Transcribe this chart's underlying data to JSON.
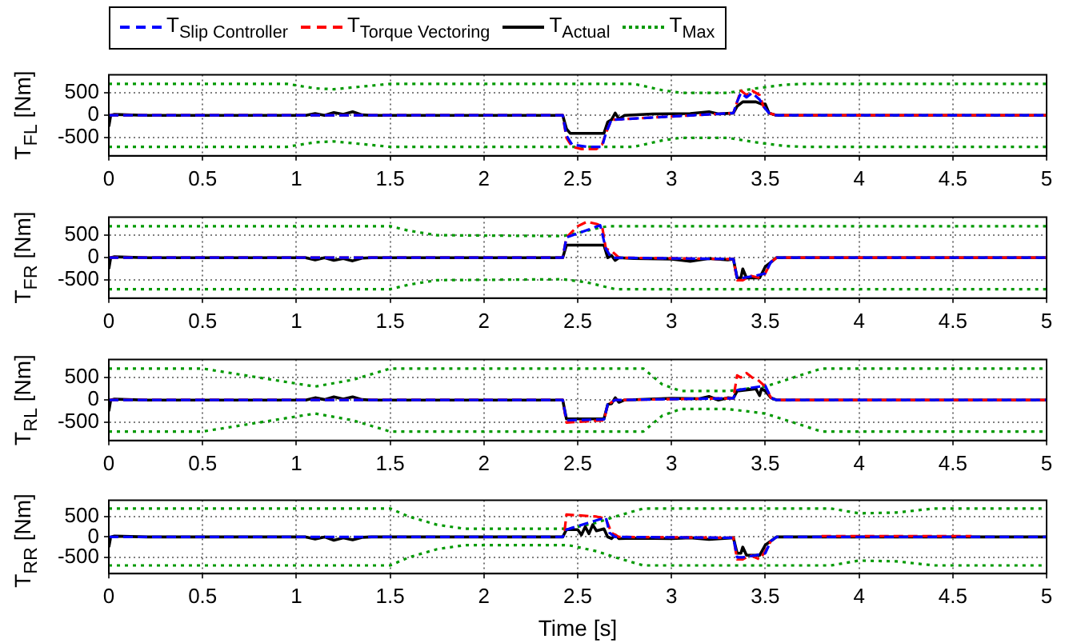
{
  "chart_data": [
    {
      "type": "line",
      "ylabel": "T$_{FL}$ [Nm]",
      "legend": "top left",
      "grid": true,
      "xlim": [
        0,
        5
      ],
      "xticks": [
        0,
        0.5,
        1,
        1.5,
        2,
        2.5,
        3,
        3.5,
        4,
        4.5,
        5
      ],
      "ylim": [
        -900,
        900
      ],
      "yticks": [
        -500,
        0,
        500
      ],
      "series": [
        {
          "name": "T$_{Slip Controller}$",
          "color": "#0000ff",
          "line_style": "dashed",
          "x": [
            0,
            2.42,
            2.44,
            2.47,
            2.55,
            2.63,
            2.65,
            2.68,
            3.33,
            3.35,
            3.37,
            3.4,
            3.43,
            3.47,
            3.49,
            3.52,
            3.56,
            5
          ],
          "values": [
            0,
            0,
            -450,
            -650,
            -700,
            -700,
            -400,
            -100,
            50,
            300,
            500,
            400,
            500,
            350,
            200,
            50,
            0,
            0
          ]
        },
        {
          "name": "T$_{Torque Vectoring}$",
          "color": "#ff0000",
          "line_style": "dashed",
          "x": [
            0,
            2.42,
            2.44,
            2.47,
            2.52,
            2.6,
            2.63,
            2.65,
            2.68,
            3.33,
            3.35,
            3.37,
            3.4,
            3.43,
            3.47,
            3.49,
            3.52,
            3.56,
            5
          ],
          "values": [
            0,
            0,
            -500,
            -700,
            -750,
            -750,
            -650,
            -400,
            -100,
            50,
            300,
            550,
            450,
            550,
            450,
            200,
            50,
            0,
            0
          ]
        },
        {
          "name": "T$_{Actual}$",
          "color": "#000000",
          "line_style": "solid",
          "x": [
            0,
            0.01,
            0.03,
            0.2,
            1.05,
            1.1,
            1.15,
            1.2,
            1.25,
            1.3,
            1.35,
            1.4,
            2.42,
            2.44,
            2.46,
            2.64,
            2.66,
            2.68,
            2.7,
            2.72,
            2.75,
            2.9,
            3.1,
            3.2,
            3.25,
            3.33,
            3.35,
            3.38,
            3.45,
            3.48,
            3.5,
            3.52,
            3.56,
            5
          ],
          "values": [
            -250,
            0,
            20,
            0,
            0,
            40,
            0,
            60,
            20,
            80,
            10,
            0,
            0,
            -300,
            -400,
            -400,
            -150,
            -100,
            50,
            -80,
            0,
            30,
            40,
            80,
            30,
            50,
            200,
            300,
            300,
            250,
            250,
            50,
            0,
            0
          ]
        },
        {
          "name": "T$_{Max}$",
          "color": "#009900",
          "line_style": "dotted",
          "x": [
            0,
            0.95,
            1.1,
            1.2,
            1.5,
            2.8,
            2.95,
            3.05,
            3.3,
            3.45,
            3.6,
            3.7,
            5
          ],
          "values": [
            700,
            700,
            600,
            580,
            700,
            700,
            560,
            500,
            500,
            600,
            680,
            700,
            700
          ]
        },
        {
          "color": "#009900",
          "line_style": "dotted",
          "x": [
            0,
            0.95,
            1.1,
            1.2,
            1.5,
            2.8,
            2.95,
            3.05,
            3.3,
            3.45,
            3.6,
            3.7,
            5
          ],
          "values": [
            -700,
            -700,
            -600,
            -580,
            -700,
            -700,
            -560,
            -500,
            -500,
            -600,
            -680,
            -700,
            -700
          ]
        }
      ]
    },
    {
      "type": "line",
      "ylabel": "T$_{FR}$ [Nm]",
      "grid": true,
      "xlim": [
        0,
        5
      ],
      "xticks": [
        0,
        0.5,
        1,
        1.5,
        2,
        2.5,
        3,
        3.5,
        4,
        4.5,
        5
      ],
      "ylim": [
        -900,
        900
      ],
      "yticks": [
        -500,
        0,
        500
      ],
      "series": [
        {
          "color": "#0000ff",
          "line_style": "dashed",
          "x": [
            0,
            2.42,
            2.44,
            2.62,
            2.65,
            2.68,
            3.33,
            3.35,
            3.38,
            3.45,
            3.5,
            3.53,
            3.56,
            5
          ],
          "values": [
            0,
            0,
            450,
            720,
            200,
            0,
            -30,
            -450,
            -450,
            -400,
            -350,
            -100,
            0,
            0
          ]
        },
        {
          "color": "#ff0000",
          "line_style": "dashed",
          "x": [
            0,
            2.42,
            2.44,
            2.5,
            2.55,
            2.6,
            2.63,
            2.65,
            2.68,
            2.72,
            3.33,
            3.35,
            3.38,
            3.42,
            3.47,
            3.5,
            3.53,
            3.56,
            5
          ],
          "values": [
            0,
            0,
            450,
            700,
            800,
            750,
            700,
            200,
            150,
            0,
            -30,
            -500,
            -500,
            -400,
            -450,
            -350,
            -100,
            0,
            0
          ]
        },
        {
          "color": "#000000",
          "line_style": "solid",
          "x": [
            0,
            0.01,
            0.03,
            0.2,
            1.05,
            1.1,
            1.15,
            1.2,
            1.25,
            1.3,
            1.35,
            1.4,
            2.42,
            2.44,
            2.64,
            2.66,
            2.68,
            2.7,
            2.72,
            2.8,
            3.0,
            3.1,
            3.2,
            3.3,
            3.33,
            3.35,
            3.37,
            3.38,
            3.4,
            3.47,
            3.5,
            3.53,
            3.56,
            5
          ],
          "values": [
            -250,
            0,
            20,
            0,
            0,
            -50,
            0,
            -60,
            -20,
            -70,
            -10,
            0,
            0,
            280,
            280,
            0,
            50,
            -60,
            0,
            -20,
            -30,
            -80,
            -20,
            -50,
            -30,
            -450,
            -450,
            -250,
            -450,
            -450,
            -200,
            -100,
            0,
            0
          ]
        },
        {
          "color": "#009900",
          "line_style": "dotted",
          "x": [
            0,
            1.5,
            1.6,
            1.75,
            2.42,
            2.5,
            2.6,
            2.66,
            5
          ],
          "values": [
            700,
            700,
            600,
            500,
            480,
            550,
            650,
            700,
            700
          ]
        },
        {
          "color": "#009900",
          "line_style": "dotted",
          "x": [
            0,
            1.5,
            1.6,
            1.75,
            2.42,
            2.55,
            2.7,
            5
          ],
          "values": [
            -700,
            -700,
            -600,
            -500,
            -480,
            -550,
            -700,
            -700
          ]
        }
      ]
    },
    {
      "type": "line",
      "ylabel": "T$_{RL}$ [Nm]",
      "grid": true,
      "xlim": [
        0,
        5
      ],
      "xticks": [
        0,
        0.5,
        1,
        1.5,
        2,
        2.5,
        3,
        3.5,
        4,
        4.5,
        5
      ],
      "ylim": [
        -900,
        900
      ],
      "yticks": [
        -500,
        0,
        500
      ],
      "series": [
        {
          "color": "#0000ff",
          "line_style": "dashed",
          "x": [
            0,
            2.42,
            2.44,
            2.64,
            2.66,
            2.7,
            3.33,
            3.35,
            3.5,
            3.53,
            3.56,
            5
          ],
          "values": [
            0,
            0,
            -450,
            -430,
            -100,
            0,
            40,
            220,
            320,
            50,
            0,
            0
          ]
        },
        {
          "color": "#ff0000",
          "line_style": "dashed",
          "x": [
            0,
            2.42,
            2.44,
            2.64,
            2.66,
            2.7,
            3.33,
            3.35,
            3.37,
            3.4,
            3.43,
            3.46,
            3.5,
            3.53,
            3.56,
            5
          ],
          "values": [
            0,
            0,
            -500,
            -450,
            -100,
            0,
            40,
            550,
            500,
            600,
            500,
            450,
            300,
            50,
            0,
            0
          ]
        },
        {
          "color": "#000000",
          "line_style": "solid",
          "x": [
            0,
            0.01,
            0.03,
            0.2,
            1.05,
            1.1,
            1.15,
            1.2,
            1.25,
            1.3,
            1.35,
            1.4,
            2.42,
            2.44,
            2.64,
            2.66,
            2.68,
            2.7,
            2.72,
            2.75,
            3.0,
            3.15,
            3.2,
            3.25,
            3.3,
            3.33,
            3.35,
            3.45,
            3.47,
            3.48,
            3.5,
            3.53,
            3.56,
            5
          ],
          "values": [
            -250,
            0,
            20,
            0,
            0,
            50,
            10,
            70,
            20,
            70,
            10,
            0,
            0,
            -420,
            -420,
            -100,
            -80,
            50,
            -50,
            0,
            40,
            30,
            80,
            0,
            50,
            40,
            200,
            250,
            100,
            250,
            200,
            50,
            0,
            0
          ]
        },
        {
          "color": "#009900",
          "line_style": "dotted",
          "x": [
            0,
            0.5,
            0.8,
            1.1,
            1.3,
            1.5,
            2.85,
            2.95,
            3.05,
            3.3,
            3.5,
            3.65,
            3.8,
            5
          ],
          "values": [
            700,
            700,
            500,
            300,
            450,
            700,
            700,
            350,
            200,
            200,
            300,
            500,
            700,
            700
          ]
        },
        {
          "color": "#009900",
          "line_style": "dotted",
          "x": [
            0,
            0.5,
            0.8,
            1.1,
            1.3,
            1.5,
            2.85,
            2.95,
            3.05,
            3.3,
            3.5,
            3.65,
            3.8,
            5
          ],
          "values": [
            -700,
            -700,
            -500,
            -300,
            -450,
            -700,
            -700,
            -350,
            -200,
            -200,
            -300,
            -500,
            -700,
            -700
          ]
        }
      ]
    },
    {
      "type": "line",
      "ylabel": "T$_{RR}$ [Nm]",
      "xlabel": "Time [s]",
      "grid": true,
      "xlim": [
        0,
        5
      ],
      "xticks": [
        0,
        0.5,
        1,
        1.5,
        2,
        2.5,
        3,
        3.5,
        4,
        4.5,
        5
      ],
      "ylim": [
        -900,
        900
      ],
      "yticks": [
        -500,
        0,
        500
      ],
      "series": [
        {
          "color": "#0000ff",
          "line_style": "dashed",
          "x": [
            0,
            2.42,
            2.44,
            2.65,
            2.67,
            2.7,
            3.33,
            3.35,
            3.38,
            3.45,
            3.5,
            3.53,
            3.56,
            5
          ],
          "values": [
            0,
            0,
            180,
            480,
            100,
            0,
            -20,
            -500,
            -500,
            -450,
            -400,
            -100,
            0,
            0
          ]
        },
        {
          "color": "#ff0000",
          "line_style": "dashed",
          "x": [
            2.43,
            2.44,
            2.6,
            2.65,
            2.68,
            2.72,
            3.33,
            3.35,
            3.38,
            3.42,
            3.47,
            3.5,
            3.53,
            3.7,
            3.8,
            4.6
          ],
          "values": [
            150,
            550,
            500,
            450,
            100,
            0,
            -20,
            -550,
            -550,
            -450,
            -550,
            -350,
            -100,
            null,
            20,
            20
          ]
        },
        {
          "color": "#000000",
          "line_style": "solid",
          "x": [
            0,
            0.01,
            0.03,
            0.2,
            1.05,
            1.1,
            1.15,
            1.2,
            1.25,
            1.3,
            1.35,
            1.4,
            2.42,
            2.44,
            2.5,
            2.52,
            2.54,
            2.56,
            2.58,
            2.6,
            2.64,
            2.66,
            2.68,
            2.7,
            2.72,
            2.8,
            3.0,
            3.1,
            3.2,
            3.3,
            3.33,
            3.35,
            3.37,
            3.38,
            3.4,
            3.47,
            3.5,
            3.53,
            3.56,
            5
          ],
          "values": [
            -250,
            0,
            20,
            0,
            0,
            -50,
            0,
            -80,
            -20,
            -70,
            -10,
            0,
            0,
            180,
            180,
            50,
            250,
            80,
            300,
            150,
            200,
            0,
            -40,
            50,
            -40,
            -30,
            -40,
            -20,
            -60,
            -30,
            -20,
            -400,
            -400,
            -250,
            -450,
            -450,
            -200,
            -100,
            0,
            0
          ]
        },
        {
          "color": "#009900",
          "line_style": "dotted",
          "x": [
            0,
            1.5,
            1.6,
            1.75,
            1.9,
            2.45,
            2.6,
            2.7,
            2.85,
            3.85,
            4.0,
            4.2,
            4.4,
            5
          ],
          "values": [
            700,
            700,
            500,
            300,
            200,
            200,
            350,
            500,
            700,
            700,
            580,
            600,
            700,
            700
          ]
        },
        {
          "color": "#009900",
          "line_style": "dotted",
          "x": [
            0,
            1.5,
            1.6,
            1.75,
            1.9,
            2.45,
            2.6,
            2.7,
            2.85,
            3.85,
            4.0,
            4.2,
            4.4,
            5
          ],
          "values": [
            -700,
            -700,
            -500,
            -300,
            -200,
            -200,
            -350,
            -500,
            -700,
            -700,
            -580,
            -600,
            -700,
            -700
          ]
        }
      ]
    }
  ]
}
